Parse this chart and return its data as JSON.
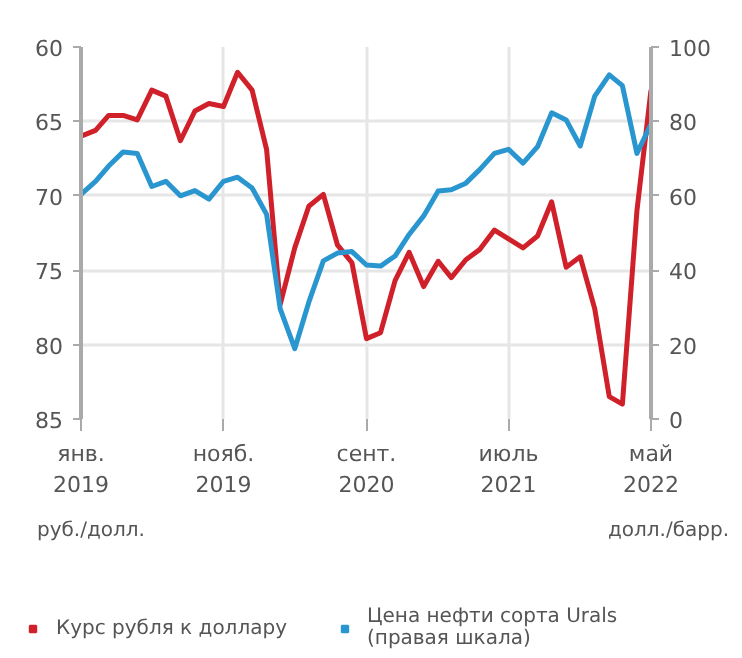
{
  "chart_data": {
    "type": "line",
    "xlabel": null,
    "ylabel": "руб./долл.",
    "y2label": "долл./барр.",
    "x": [
      "2019-01",
      "2019-02",
      "2019-03",
      "2019-04",
      "2019-05",
      "2019-06",
      "2019-07",
      "2019-08",
      "2019-09",
      "2019-10",
      "2019-11",
      "2019-12",
      "2020-01",
      "2020-02",
      "2020-03",
      "2020-04",
      "2020-05",
      "2020-06",
      "2020-07",
      "2020-08",
      "2020-09",
      "2020-10",
      "2020-11",
      "2020-12",
      "2021-01",
      "2021-02",
      "2021-03",
      "2021-04",
      "2021-05",
      "2021-06",
      "2021-07",
      "2021-08",
      "2021-09",
      "2021-10",
      "2021-11",
      "2021-12",
      "2022-01",
      "2022-02",
      "2022-03",
      "2022-04",
      "2022-05"
    ],
    "series": [
      {
        "name": "Курс рубля к доллару",
        "color": "#d0202a",
        "values": [
          66.0,
          65.6,
          64.6,
          64.6,
          64.9,
          62.9,
          63.3,
          66.3,
          64.3,
          63.8,
          64.0,
          61.7,
          62.9,
          66.9,
          77.3,
          73.5,
          70.7,
          69.9,
          73.3,
          74.5,
          79.6,
          79.2,
          75.7,
          73.8,
          76.1,
          74.4,
          75.5,
          74.3,
          73.6,
          72.3,
          72.9,
          73.5,
          72.7,
          70.4,
          74.8,
          74.1,
          77.6,
          83.5,
          84.0,
          71.0,
          62.9
        ]
      },
      {
        "name": "Цена нефти сорта Urals (правая шкала)",
        "color": "#2a96d0",
        "axis": "y2",
        "values": [
          60.4,
          63.9,
          68.0,
          71.8,
          71.4,
          62.5,
          63.9,
          60.0,
          61.4,
          59.1,
          63.9,
          65.0,
          62.1,
          55.0,
          29.6,
          18.9,
          31.4,
          42.5,
          44.6,
          45.0,
          41.4,
          41.1,
          43.8,
          49.6,
          54.6,
          61.3,
          61.6,
          63.4,
          67.1,
          71.4,
          72.5,
          68.8,
          73.2,
          82.3,
          80.4,
          73.4,
          86.8,
          92.5,
          89.6,
          71.4,
          79.3
        ]
      }
    ],
    "xlim": [
      "2019-01",
      "2022-05"
    ],
    "xticks": [
      {
        "value": "2019-01",
        "label": "янв.\n2019"
      },
      {
        "value": "2019-11",
        "label": "нояб.\n2019"
      },
      {
        "value": "2020-09",
        "label": "сент.\n2020"
      },
      {
        "value": "2021-07",
        "label": "июль\n2021"
      },
      {
        "value": "2022-05",
        "label": "май\n2022"
      }
    ],
    "ylim": [
      85,
      60
    ],
    "yticks": [
      60,
      65,
      70,
      75,
      80,
      85
    ],
    "y2lim": [
      0,
      100
    ],
    "y2ticks": [
      0,
      20,
      40,
      60,
      80,
      100
    ],
    "grid": true,
    "legend": "bottom",
    "line_style": "solid",
    "marker": "none"
  }
}
